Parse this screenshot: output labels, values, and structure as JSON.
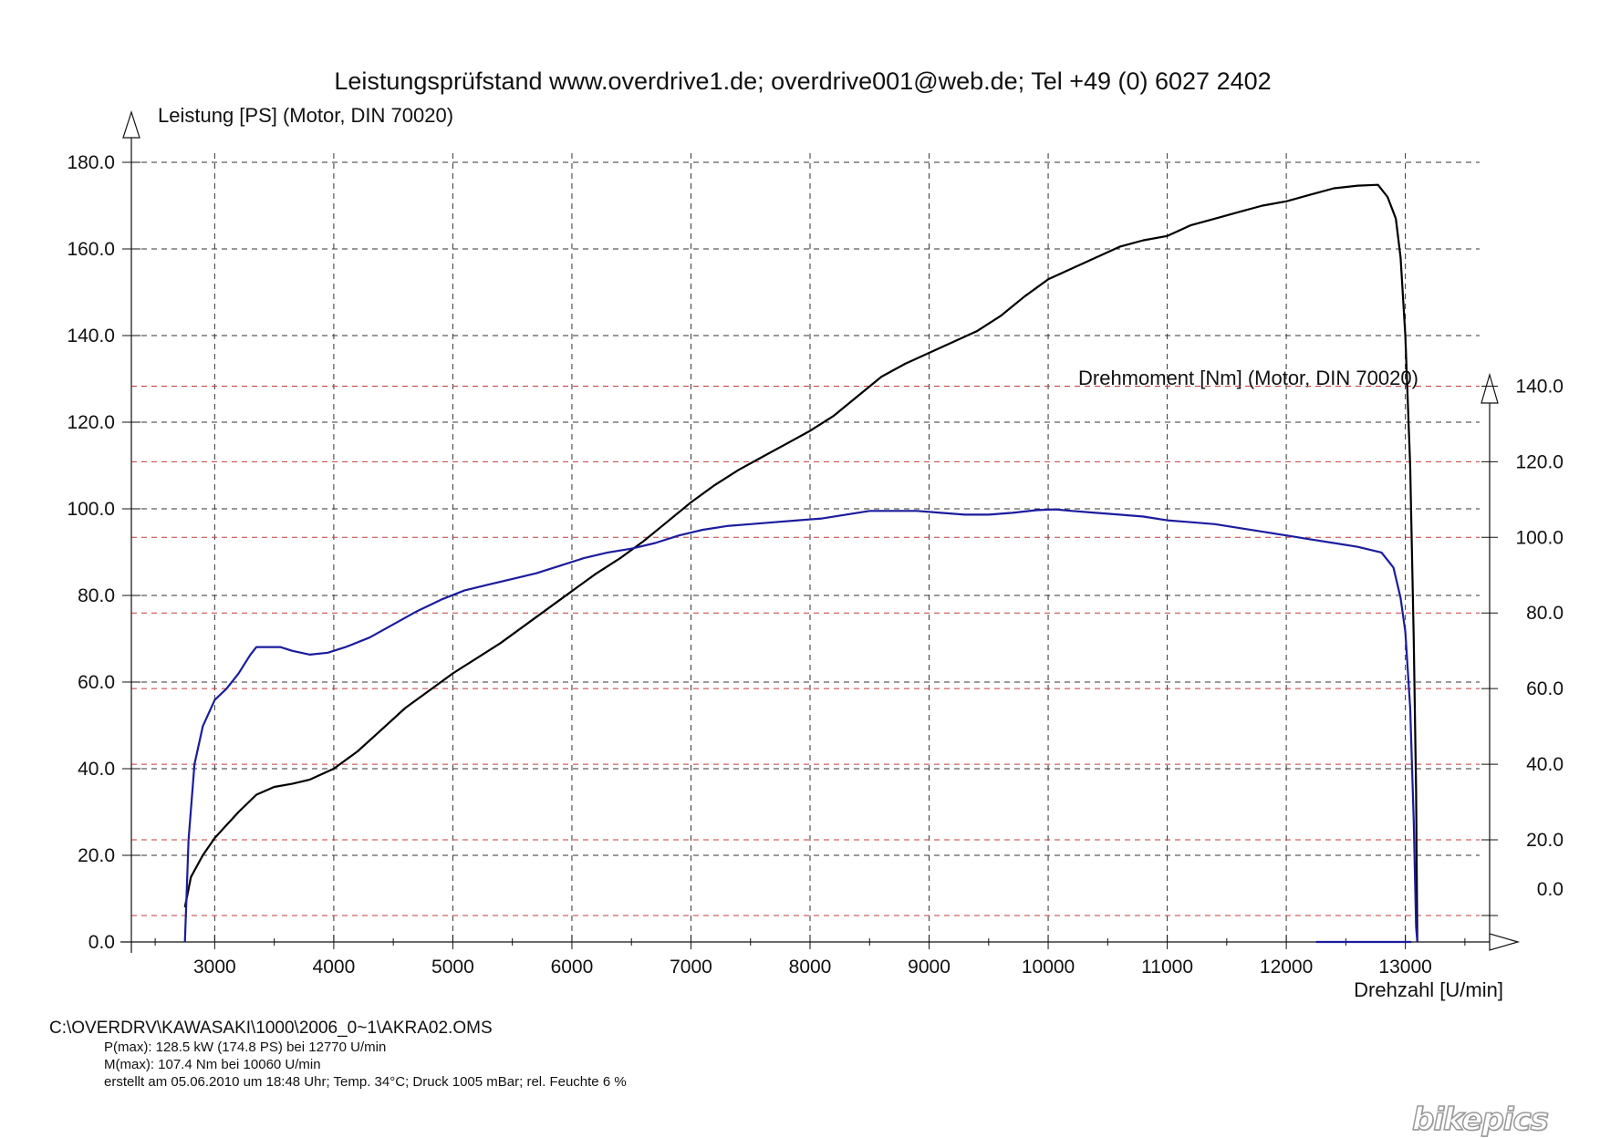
{
  "chart_data": {
    "type": "line",
    "title": "Leistungsprüfstand www.overdrive1.de; overdrive001@web.de; Tel +49 (0) 6027 2402",
    "xlabel": "Drehzahl [U/min]",
    "ylabel": "Leistung [PS] (Motor, DIN 70020)",
    "y2label": "Drehmoment [Nm] (Motor, DIN 70020)",
    "xlim": [
      2300,
      13700
    ],
    "ylim": [
      0,
      180
    ],
    "y2lim": [
      -7,
      143
    ],
    "xticks": [
      3000,
      4000,
      5000,
      6000,
      7000,
      8000,
      9000,
      10000,
      11000,
      12000,
      13000
    ],
    "xtick_labels": [
      "3000",
      "4000",
      "5000",
      "6000",
      "7000",
      "8000",
      "9000",
      "10000",
      "11000",
      "12000",
      "13000"
    ],
    "yticks": [
      0,
      20,
      40,
      60,
      80,
      100,
      120,
      140,
      160,
      180
    ],
    "ytick_labels": [
      "0.0",
      "20.0",
      "40.0",
      "60.0",
      "80.0",
      "100.0",
      "120.0",
      "140.0",
      "160.0",
      "180.0"
    ],
    "y2ticks": [
      0,
      20,
      40,
      60,
      80,
      100,
      120,
      140
    ],
    "y2tick_labels": [
      "0.0",
      "20.0",
      "40.0",
      "60.0",
      "80.0",
      "100.0",
      "120.0",
      "140.0"
    ],
    "grid": true,
    "series": [
      {
        "name": "Leistung",
        "axis": "left",
        "color": "#000000",
        "points": [
          [
            2750,
            8
          ],
          [
            2800,
            15
          ],
          [
            2900,
            20
          ],
          [
            3000,
            24
          ],
          [
            3100,
            27
          ],
          [
            3200,
            30
          ],
          [
            3350,
            34
          ],
          [
            3500,
            35.8
          ],
          [
            3650,
            36.5
          ],
          [
            3800,
            37.5
          ],
          [
            4000,
            40
          ],
          [
            4200,
            44
          ],
          [
            4400,
            49
          ],
          [
            4600,
            54
          ],
          [
            4800,
            58
          ],
          [
            5000,
            62
          ],
          [
            5200,
            65.5
          ],
          [
            5400,
            69
          ],
          [
            5600,
            73
          ],
          [
            5800,
            77
          ],
          [
            6000,
            81
          ],
          [
            6200,
            85
          ],
          [
            6400,
            88.5
          ],
          [
            6600,
            92.5
          ],
          [
            6800,
            97
          ],
          [
            7000,
            101.5
          ],
          [
            7200,
            105.5
          ],
          [
            7400,
            109
          ],
          [
            7600,
            112
          ],
          [
            7800,
            115
          ],
          [
            8000,
            118
          ],
          [
            8200,
            121.5
          ],
          [
            8400,
            126
          ],
          [
            8600,
            130.5
          ],
          [
            8800,
            133.5
          ],
          [
            9000,
            136
          ],
          [
            9200,
            138.5
          ],
          [
            9400,
            141
          ],
          [
            9600,
            144.5
          ],
          [
            9800,
            149
          ],
          [
            10000,
            153
          ],
          [
            10200,
            155.5
          ],
          [
            10400,
            158
          ],
          [
            10600,
            160.5
          ],
          [
            10800,
            162
          ],
          [
            11000,
            163
          ],
          [
            11200,
            165.5
          ],
          [
            11400,
            167
          ],
          [
            11600,
            168.5
          ],
          [
            11800,
            170
          ],
          [
            12000,
            171
          ],
          [
            12200,
            172.5
          ],
          [
            12400,
            174
          ],
          [
            12600,
            174.6
          ],
          [
            12770,
            174.8
          ],
          [
            12850,
            172
          ],
          [
            12920,
            167
          ],
          [
            12960,
            158
          ],
          [
            13000,
            140
          ],
          [
            13040,
            110
          ],
          [
            13070,
            70
          ],
          [
            13090,
            35
          ],
          [
            13100,
            0
          ]
        ]
      },
      {
        "name": "Drehmoment",
        "axis": "right",
        "color": "#1b1c9e",
        "points": [
          [
            2750,
            -7
          ],
          [
            2780,
            20
          ],
          [
            2830,
            40
          ],
          [
            2900,
            50
          ],
          [
            3000,
            57
          ],
          [
            3100,
            60
          ],
          [
            3200,
            64
          ],
          [
            3300,
            69
          ],
          [
            3350,
            71
          ],
          [
            3450,
            71
          ],
          [
            3550,
            71
          ],
          [
            3650,
            70
          ],
          [
            3800,
            69
          ],
          [
            3950,
            69.5
          ],
          [
            4100,
            71
          ],
          [
            4300,
            73.5
          ],
          [
            4500,
            77
          ],
          [
            4700,
            80.5
          ],
          [
            4900,
            83.5
          ],
          [
            5100,
            86
          ],
          [
            5300,
            87.5
          ],
          [
            5500,
            89
          ],
          [
            5700,
            90.5
          ],
          [
            5900,
            92.5
          ],
          [
            6100,
            94.5
          ],
          [
            6300,
            96
          ],
          [
            6500,
            97
          ],
          [
            6700,
            98.5
          ],
          [
            6900,
            100.5
          ],
          [
            7100,
            102
          ],
          [
            7300,
            103
          ],
          [
            7500,
            103.5
          ],
          [
            7700,
            104
          ],
          [
            7900,
            104.5
          ],
          [
            8100,
            105
          ],
          [
            8300,
            106
          ],
          [
            8500,
            107
          ],
          [
            8700,
            107
          ],
          [
            8900,
            107
          ],
          [
            9100,
            106.5
          ],
          [
            9300,
            106
          ],
          [
            9500,
            106
          ],
          [
            9700,
            106.5
          ],
          [
            9900,
            107.2
          ],
          [
            10060,
            107.4
          ],
          [
            10200,
            107
          ],
          [
            10400,
            106.5
          ],
          [
            10600,
            106
          ],
          [
            10800,
            105.5
          ],
          [
            11000,
            104.5
          ],
          [
            11200,
            104
          ],
          [
            11400,
            103.5
          ],
          [
            11600,
            102.5
          ],
          [
            11800,
            101.5
          ],
          [
            12000,
            100.5
          ],
          [
            12200,
            99.5
          ],
          [
            12400,
            98.5
          ],
          [
            12600,
            97.5
          ],
          [
            12800,
            96
          ],
          [
            12900,
            92
          ],
          [
            12960,
            84
          ],
          [
            13000,
            75
          ],
          [
            13040,
            55
          ],
          [
            13070,
            25
          ],
          [
            13090,
            -3
          ],
          [
            13100,
            -7
          ]
        ]
      },
      {
        "name": "Drehmoment-Ende",
        "axis": "right",
        "color": "#1b1c9e",
        "points": [
          [
            12250,
            -7
          ],
          [
            13050,
            -7
          ]
        ]
      }
    ]
  },
  "footer": {
    "file_path": "C:\\OVERDRV\\KAWASAKI\\1000\\2006_0~1\\AKRA02.OMS",
    "pmax": "P(max): 128.5 kW (174.8 PS) bei 12770 U/min",
    "mmax": "M(max): 107.4 Nm bei 10060 U/min",
    "created": "erstellt am 05.06.2010 um 18:48 Uhr; Temp. 34°C; Druck 1005 mBar; rel. Feuchte 6 %"
  },
  "watermark": "bikepics"
}
